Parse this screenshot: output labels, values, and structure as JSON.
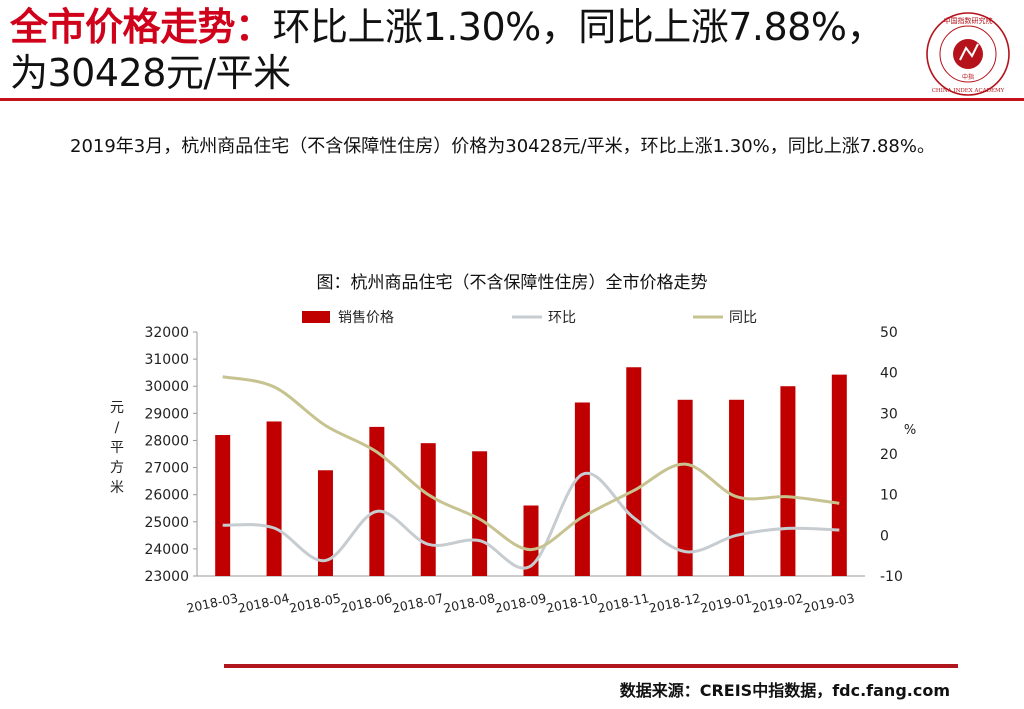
{
  "header": {
    "title_red": "全市价格走势：",
    "title_rest": "环比上涨1.30%，同比上涨7.88%，为30428元/平米"
  },
  "logo": {
    "icon": "china-index-academy-seal-icon",
    "text_top": "中国指数研究院",
    "text_bottom": "CHINA INDEX ACADEMY",
    "center": "中指",
    "color": "#b5121b"
  },
  "paragraph": "2019年3月，杭州商品住宅（不含保障性住房）价格为30428元/平米，环比上涨1.30%，同比上涨7.88%。",
  "chart_title": "图：杭州商品住宅（不含保障性住房）全市价格走势",
  "chart_data": {
    "type": "bar",
    "categories": [
      "2018-03",
      "2018-04",
      "2018-05",
      "2018-06",
      "2018-07",
      "2018-08",
      "2018-09",
      "2018-10",
      "2018-11",
      "2018-12",
      "2019-01",
      "2019-02",
      "2019-03"
    ],
    "ylabel": "元/平方米",
    "ylim": [
      23000,
      32000
    ],
    "yticks": [
      "23000",
      "24000",
      "25000",
      "26000",
      "27000",
      "28000",
      "29000",
      "30000",
      "31000",
      "32000"
    ],
    "y2label": "%",
    "y2lim": [
      -10,
      50
    ],
    "y2ticks": [
      "-10",
      "0",
      "10",
      "20",
      "30",
      "40",
      "50"
    ],
    "legend_position": "top",
    "grid": false,
    "series": [
      {
        "name": "销售价格",
        "type": "bar",
        "axis": "left",
        "color": "#c00000",
        "values": [
          28200,
          28700,
          26900,
          28500,
          27900,
          27600,
          25600,
          29400,
          30700,
          29500,
          29500,
          30000,
          30428
        ]
      },
      {
        "name": "环比",
        "type": "line",
        "axis": "right",
        "color": "#c6ccd0",
        "values": [
          2.5,
          1.8,
          -6.2,
          5.9,
          -2.2,
          -1.3,
          -7.5,
          15.0,
          4.3,
          -4.0,
          0.0,
          1.7,
          1.3
        ]
      },
      {
        "name": "同比",
        "type": "line",
        "axis": "right",
        "color": "#c7c391",
        "values": [
          39.0,
          36.5,
          27.0,
          20.5,
          10.0,
          4.0,
          -3.5,
          4.5,
          11.0,
          17.5,
          9.5,
          9.5,
          7.88
        ]
      }
    ]
  },
  "footer": {
    "source": "数据来源：CREIS中指数据，fdc.fang.com"
  }
}
